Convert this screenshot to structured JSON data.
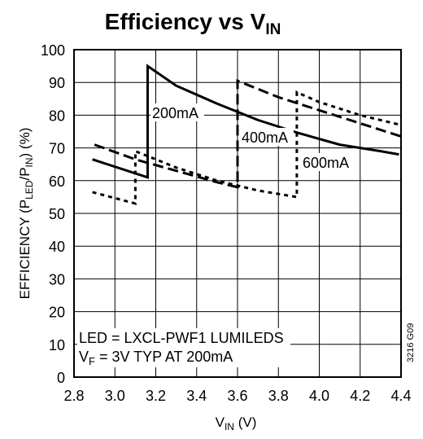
{
  "chart_data": {
    "type": "line",
    "title": {
      "main": "Efficiency vs V",
      "sub": "IN"
    },
    "xlabel": {
      "main": "V",
      "sub": "IN",
      "suffix": " (V)"
    },
    "ylabel": {
      "p1": "EFFICIENCY (P",
      "s1": "LED",
      "p2": "/P",
      "s2": "IN",
      "p3": ") (%)"
    },
    "xlim": [
      2.8,
      4.4
    ],
    "ylim": [
      0,
      100
    ],
    "xticks": [
      "2.8",
      "3.0",
      "3.2",
      "3.4",
      "3.6",
      "3.8",
      "4.0",
      "4.2",
      "4.4"
    ],
    "yticks": [
      "0",
      "10",
      "20",
      "30",
      "40",
      "50",
      "60",
      "70",
      "80",
      "90",
      "100"
    ],
    "grid": true,
    "series": [
      {
        "name": "200mA",
        "style": "solid",
        "x": [
          2.89,
          3.16,
          3.16,
          3.3,
          3.5,
          3.7,
          3.9,
          4.1,
          4.3,
          4.39
        ],
        "y": [
          66.5,
          61,
          95,
          89,
          83.5,
          78.5,
          74.5,
          71,
          69,
          68
        ]
      },
      {
        "name": "400mA",
        "style": "dashed",
        "x": [
          2.9,
          3.1,
          3.3,
          3.5,
          3.6,
          3.6,
          3.8,
          4.0,
          4.2,
          4.4
        ],
        "y": [
          71,
          66.5,
          63,
          59.5,
          58,
          90.5,
          85.5,
          81.5,
          77.5,
          73.5
        ]
      },
      {
        "name": "600mA",
        "style": "dotted",
        "x": [
          2.89,
          3.1,
          3.1,
          3.3,
          3.5,
          3.7,
          3.89,
          3.89,
          4.0,
          4.2,
          4.4
        ],
        "y": [
          56.5,
          53,
          69,
          64,
          60,
          57,
          55,
          87,
          84,
          80,
          77
        ]
      }
    ],
    "annotations": [
      {
        "series": "200mA",
        "text": "200mA"
      },
      {
        "series": "400mA",
        "text": "400mA"
      },
      {
        "series": "600mA",
        "text": "600mA"
      }
    ],
    "notes": [
      {
        "main": "LED = LXCL-PWF1 LUMILEDS"
      },
      {
        "main": "V",
        "sub": "F",
        "rest": " = 3V TYP AT 200mA"
      }
    ],
    "figure_id": "3216 G09"
  }
}
